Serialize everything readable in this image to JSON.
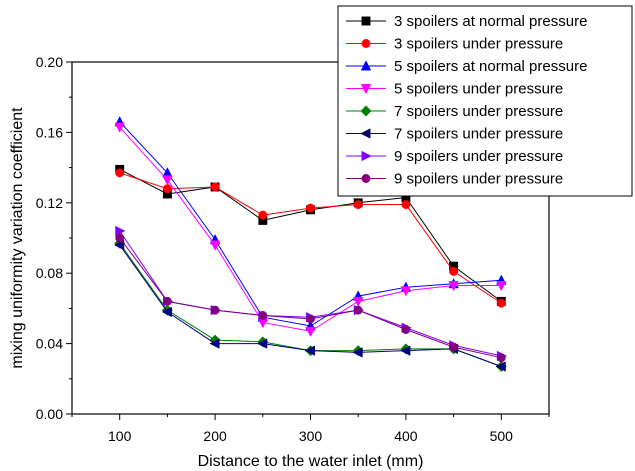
{
  "chart_data": {
    "type": "line",
    "xlabel": "Distance to the water inlet (mm)",
    "ylabel": "mixing uniformity variation coefficient",
    "xlim": [
      50,
      550
    ],
    "ylim": [
      0,
      0.2
    ],
    "xticks": [
      100,
      200,
      300,
      400,
      500
    ],
    "yticks": [
      0.0,
      0.04,
      0.08,
      0.12,
      0.16,
      0.2
    ],
    "xtick_labels": [
      "100",
      "200",
      "300",
      "400",
      "500"
    ],
    "ytick_labels": [
      "0.00",
      "0.04",
      "0.08",
      "0.12",
      "0.16",
      "0.20"
    ],
    "grid": false,
    "legend_position": "top-right",
    "x": [
      100,
      150,
      200,
      250,
      300,
      350,
      400,
      450,
      500
    ],
    "series": [
      {
        "name": "3 spoilers at normal pressure",
        "color": "#000000",
        "marker": "square",
        "values": [
          0.139,
          0.125,
          0.129,
          0.11,
          0.116,
          0.12,
          0.123,
          0.084,
          0.064
        ]
      },
      {
        "name": "3 spoilers under pressure",
        "color": "#ff0000",
        "marker": "circle",
        "values": [
          0.137,
          0.128,
          0.129,
          0.113,
          0.117,
          0.119,
          0.119,
          0.081,
          0.063
        ]
      },
      {
        "name": "5 spoilers at normal pressure",
        "color": "#0000ff",
        "marker": "triangle-up",
        "values": [
          0.166,
          0.137,
          0.099,
          0.055,
          0.05,
          0.067,
          0.072,
          0.074,
          0.076
        ]
      },
      {
        "name": "5 spoilers under pressure",
        "color": "#ff00ff",
        "marker": "triangle-down",
        "values": [
          0.163,
          0.133,
          0.096,
          0.052,
          0.047,
          0.064,
          0.07,
          0.073,
          0.073
        ]
      },
      {
        "name": "7 spoilers under pressure",
        "color": "#008000",
        "marker": "diamond",
        "values": [
          0.097,
          0.059,
          0.042,
          0.041,
          0.036,
          0.036,
          0.037,
          0.037,
          0.027
        ]
      },
      {
        "name": "7 spoilers under pressure",
        "color": "#000080",
        "marker": "triangle-left",
        "values": [
          0.096,
          0.058,
          0.04,
          0.04,
          0.036,
          0.035,
          0.036,
          0.037,
          0.027
        ]
      },
      {
        "name": "9 spoilers under pressure",
        "color": "#8000ff",
        "marker": "triangle-right",
        "values": [
          0.104,
          0.064,
          0.059,
          0.056,
          0.055,
          0.059,
          0.049,
          0.039,
          0.033
        ]
      },
      {
        "name": "9 spoilers under pressure",
        "color": "#800080",
        "marker": "circle",
        "values": [
          0.1,
          0.064,
          0.059,
          0.056,
          0.054,
          0.059,
          0.048,
          0.038,
          0.032
        ]
      }
    ]
  }
}
